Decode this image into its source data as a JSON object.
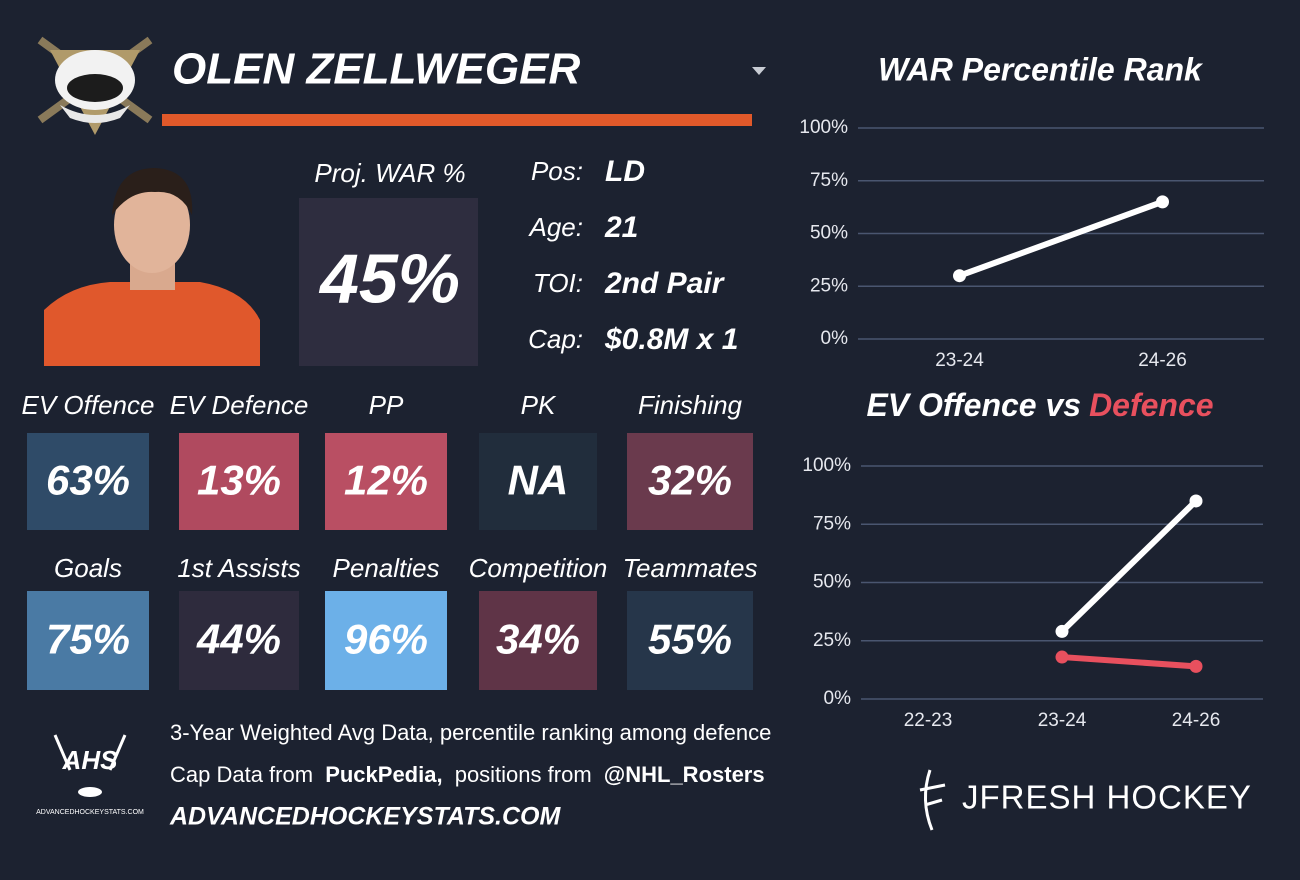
{
  "header": {
    "player": "OLEN ZELLWEGER"
  },
  "projection": {
    "label": "Proj. WAR %",
    "value": "45%"
  },
  "bio": [
    [
      "Pos:",
      "LD"
    ],
    [
      "Age:",
      "21"
    ],
    [
      "TOI:",
      "2nd Pair"
    ],
    [
      "Cap:",
      "$0.8M x 1"
    ]
  ],
  "tiles": [
    {
      "label": "EV Offence",
      "value": "63%",
      "color": "#2f4b68"
    },
    {
      "label": "EV Defence",
      "value": "13%",
      "color": "#b04a5f"
    },
    {
      "label": "PP",
      "value": "12%",
      "color": "#b94f63"
    },
    {
      "label": "PK",
      "value": "NA",
      "color": "#212d3c"
    },
    {
      "label": "Finishing",
      "value": "32%",
      "color": "#6a3a4d"
    },
    {
      "label": "Goals",
      "value": "75%",
      "color": "#4a7aa4"
    },
    {
      "label": "1st Assists",
      "value": "44%",
      "color": "#2e2b3d"
    },
    {
      "label": "Penalties",
      "value": "96%",
      "color": "#6cb0e8"
    },
    {
      "label": "Competition",
      "value": "34%",
      "color": "#5f3447"
    },
    {
      "label": "Teammates",
      "value": "55%",
      "color": "#26364a"
    }
  ],
  "footer": {
    "note": "3-Year Weighted Avg Data, percentile ranking among defence",
    "cap_line": [
      "Cap Data from",
      "PuckPedia,",
      "positions from",
      "@NHL_Rosters"
    ],
    "website": "ADVANCEDHOCKEYSTATS.COM",
    "ahs_logo": {
      "text": "AHS",
      "caption": "ADVANCEDHOCKEYSTATS.COM"
    },
    "brand": "JFRESH HOCKEY"
  },
  "chart_data": [
    {
      "type": "line",
      "title": "WAR Percentile Rank",
      "categories": [
        "23-24",
        "24-26"
      ],
      "values": [
        30,
        65
      ],
      "color": "#ffffff",
      "ylim": [
        0,
        100
      ],
      "yticks": [
        {
          "value": 0,
          "label": "0%"
        },
        {
          "value": 25,
          "label": "25%"
        },
        {
          "value": 50,
          "label": "50%"
        },
        {
          "value": 75,
          "label": "75%"
        },
        {
          "value": 100,
          "label": "100%"
        }
      ],
      "grid": true
    },
    {
      "type": "line",
      "title_parts": [
        "EV Offence vs",
        "Defence"
      ],
      "categories": [
        "22-23",
        "23-24",
        "24-26"
      ],
      "series": [
        {
          "color": "#ffffff",
          "values": [
            null,
            29,
            85
          ]
        },
        {
          "color": "#e8505e",
          "values": [
            null,
            18,
            14
          ]
        }
      ],
      "ylim": [
        0,
        100
      ],
      "yticks": [
        {
          "value": 0,
          "label": "0%"
        },
        {
          "value": 25,
          "label": "25%"
        },
        {
          "value": 50,
          "label": "50%"
        },
        {
          "value": 75,
          "label": "75%"
        },
        {
          "value": 100,
          "label": "100%"
        }
      ],
      "grid": true
    }
  ]
}
